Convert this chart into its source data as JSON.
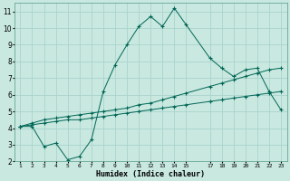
{
  "xlabel": "Humidex (Indice chaleur)",
  "ylabel": "",
  "bg_color": "#c8e8e0",
  "grid_color": "#aad4cc",
  "line_color": "#006655",
  "xlim": [
    0.5,
    23.5
  ],
  "ylim": [
    2,
    11.5
  ],
  "xticks": [
    1,
    2,
    3,
    4,
    5,
    6,
    7,
    8,
    9,
    10,
    11,
    12,
    13,
    14,
    15,
    17,
    18,
    19,
    20,
    21,
    22,
    23
  ],
  "yticks": [
    2,
    3,
    4,
    5,
    6,
    7,
    8,
    9,
    10,
    11
  ],
  "series": [
    {
      "x": [
        1,
        2,
        3,
        4,
        5,
        6,
        7,
        8,
        9,
        10,
        11,
        12,
        13,
        14,
        15,
        17,
        18,
        19,
        20,
        21,
        22,
        23
      ],
      "y": [
        4.1,
        4.1,
        2.9,
        3.1,
        2.1,
        2.3,
        3.3,
        6.2,
        7.8,
        9.0,
        10.1,
        10.7,
        10.1,
        11.2,
        10.2,
        8.2,
        7.6,
        7.1,
        7.5,
        7.6,
        6.2,
        5.1
      ]
    },
    {
      "x": [
        1,
        2,
        3,
        4,
        5,
        6,
        7,
        8,
        9,
        10,
        11,
        12,
        13,
        14,
        15,
        17,
        18,
        19,
        20,
        21,
        22,
        23
      ],
      "y": [
        4.1,
        4.3,
        4.5,
        4.6,
        4.7,
        4.8,
        4.9,
        5.0,
        5.1,
        5.2,
        5.4,
        5.5,
        5.7,
        5.9,
        6.1,
        6.5,
        6.7,
        6.9,
        7.1,
        7.3,
        7.5,
        7.6
      ]
    },
    {
      "x": [
        1,
        2,
        3,
        4,
        5,
        6,
        7,
        8,
        9,
        10,
        11,
        12,
        13,
        14,
        15,
        17,
        18,
        19,
        20,
        21,
        22,
        23
      ],
      "y": [
        4.1,
        4.2,
        4.3,
        4.4,
        4.5,
        4.5,
        4.6,
        4.7,
        4.8,
        4.9,
        5.0,
        5.1,
        5.2,
        5.3,
        5.4,
        5.6,
        5.7,
        5.8,
        5.9,
        6.0,
        6.1,
        6.2
      ]
    }
  ]
}
